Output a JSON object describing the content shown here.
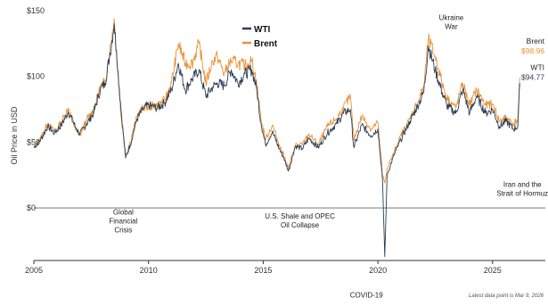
{
  "chart_data": {
    "type": "line",
    "title": "",
    "ylabel": "Oil Price in USD",
    "xlabel": "",
    "xlim": [
      2005,
      2027.3
    ],
    "ylim": [
      -40,
      150
    ],
    "y_ticks": [
      {
        "v": 0,
        "label": "$0"
      },
      {
        "v": 50,
        "label": "$50"
      },
      {
        "v": 100,
        "label": "$100"
      },
      {
        "v": 150,
        "label": "$150"
      }
    ],
    "x_ticks": [
      {
        "v": 2005,
        "label": "2005"
      },
      {
        "v": 2010,
        "label": "2010"
      },
      {
        "v": 2015,
        "label": "2015"
      },
      {
        "v": 2020,
        "label": "2020"
      },
      {
        "v": 2025,
        "label": "2025"
      }
    ],
    "grid": "zero-line only",
    "legend": {
      "position": "top-center",
      "items": [
        {
          "name": "WTI",
          "color": "#2c3e55"
        },
        {
          "name": "Brent",
          "color": "#e8933a"
        }
      ]
    },
    "series": [
      {
        "name": "WTI",
        "color": "#2c3e55",
        "points": [
          [
            2005.0,
            46
          ],
          [
            2005.3,
            52
          ],
          [
            2005.6,
            62
          ],
          [
            2005.9,
            57
          ],
          [
            2006.2,
            63
          ],
          [
            2006.5,
            73
          ],
          [
            2006.8,
            62
          ],
          [
            2007.0,
            56
          ],
          [
            2007.3,
            64
          ],
          [
            2007.6,
            72
          ],
          [
            2007.9,
            90
          ],
          [
            2008.1,
            95
          ],
          [
            2008.3,
            115
          ],
          [
            2008.5,
            140
          ],
          [
            2008.6,
            120
          ],
          [
            2008.8,
            75
          ],
          [
            2009.0,
            38
          ],
          [
            2009.2,
            48
          ],
          [
            2009.5,
            68
          ],
          [
            2009.8,
            76
          ],
          [
            2010.0,
            78
          ],
          [
            2010.4,
            76
          ],
          [
            2010.7,
            80
          ],
          [
            2011.0,
            90
          ],
          [
            2011.3,
            110
          ],
          [
            2011.6,
            90
          ],
          [
            2011.9,
            98
          ],
          [
            2012.2,
            105
          ],
          [
            2012.5,
            85
          ],
          [
            2012.8,
            92
          ],
          [
            2013.0,
            95
          ],
          [
            2013.3,
            93
          ],
          [
            2013.6,
            105
          ],
          [
            2013.9,
            95
          ],
          [
            2014.2,
            102
          ],
          [
            2014.5,
            105
          ],
          [
            2014.7,
            92
          ],
          [
            2014.9,
            65
          ],
          [
            2015.1,
            48
          ],
          [
            2015.4,
            58
          ],
          [
            2015.7,
            45
          ],
          [
            2015.9,
            38
          ],
          [
            2016.1,
            28
          ],
          [
            2016.4,
            47
          ],
          [
            2016.7,
            45
          ],
          [
            2017.0,
            53
          ],
          [
            2017.4,
            46
          ],
          [
            2017.8,
            57
          ],
          [
            2018.2,
            64
          ],
          [
            2018.5,
            72
          ],
          [
            2018.8,
            75
          ],
          [
            2018.95,
            46
          ],
          [
            2019.3,
            63
          ],
          [
            2019.7,
            55
          ],
          [
            2020.0,
            60
          ],
          [
            2020.2,
            22
          ],
          [
            2020.3,
            -37
          ],
          [
            2020.4,
            25
          ],
          [
            2020.7,
            40
          ],
          [
            2021.0,
            52
          ],
          [
            2021.4,
            66
          ],
          [
            2021.8,
            80
          ],
          [
            2022.0,
            88
          ],
          [
            2022.2,
            123
          ],
          [
            2022.5,
            105
          ],
          [
            2022.8,
            88
          ],
          [
            2023.0,
            78
          ],
          [
            2023.4,
            72
          ],
          [
            2023.7,
            90
          ],
          [
            2024.0,
            72
          ],
          [
            2024.3,
            85
          ],
          [
            2024.7,
            72
          ],
          [
            2025.0,
            75
          ],
          [
            2025.3,
            62
          ],
          [
            2025.6,
            66
          ],
          [
            2025.9,
            60
          ],
          [
            2026.1,
            62
          ],
          [
            2026.19,
            94.77
          ]
        ]
      },
      {
        "name": "Brent",
        "color": "#e8933a",
        "points": [
          [
            2005.0,
            45
          ],
          [
            2005.3,
            53
          ],
          [
            2005.6,
            64
          ],
          [
            2005.9,
            58
          ],
          [
            2006.2,
            65
          ],
          [
            2006.5,
            76
          ],
          [
            2006.8,
            61
          ],
          [
            2007.0,
            55
          ],
          [
            2007.3,
            67
          ],
          [
            2007.6,
            74
          ],
          [
            2007.9,
            92
          ],
          [
            2008.1,
            96
          ],
          [
            2008.3,
            118
          ],
          [
            2008.5,
            144
          ],
          [
            2008.6,
            118
          ],
          [
            2008.8,
            70
          ],
          [
            2009.0,
            40
          ],
          [
            2009.2,
            50
          ],
          [
            2009.5,
            70
          ],
          [
            2009.8,
            77
          ],
          [
            2010.0,
            77
          ],
          [
            2010.4,
            78
          ],
          [
            2010.7,
            82
          ],
          [
            2011.0,
            95
          ],
          [
            2011.3,
            125
          ],
          [
            2011.6,
            110
          ],
          [
            2011.9,
            110
          ],
          [
            2012.2,
            125
          ],
          [
            2012.5,
            95
          ],
          [
            2012.8,
            112
          ],
          [
            2013.0,
            115
          ],
          [
            2013.3,
            102
          ],
          [
            2013.6,
            112
          ],
          [
            2013.9,
            110
          ],
          [
            2014.2,
            108
          ],
          [
            2014.5,
            112
          ],
          [
            2014.7,
            97
          ],
          [
            2014.9,
            68
          ],
          [
            2015.1,
            52
          ],
          [
            2015.4,
            63
          ],
          [
            2015.7,
            48
          ],
          [
            2015.9,
            40
          ],
          [
            2016.1,
            30
          ],
          [
            2016.4,
            48
          ],
          [
            2016.7,
            48
          ],
          [
            2017.0,
            56
          ],
          [
            2017.4,
            48
          ],
          [
            2017.8,
            62
          ],
          [
            2018.2,
            68
          ],
          [
            2018.5,
            76
          ],
          [
            2018.8,
            85
          ],
          [
            2018.95,
            52
          ],
          [
            2019.3,
            70
          ],
          [
            2019.7,
            60
          ],
          [
            2020.0,
            65
          ],
          [
            2020.2,
            25
          ],
          [
            2020.3,
            19
          ],
          [
            2020.4,
            30
          ],
          [
            2020.7,
            42
          ],
          [
            2021.0,
            55
          ],
          [
            2021.4,
            68
          ],
          [
            2021.8,
            83
          ],
          [
            2022.0,
            92
          ],
          [
            2022.2,
            128
          ],
          [
            2022.5,
            115
          ],
          [
            2022.8,
            95
          ],
          [
            2023.0,
            84
          ],
          [
            2023.4,
            76
          ],
          [
            2023.7,
            95
          ],
          [
            2024.0,
            78
          ],
          [
            2024.3,
            90
          ],
          [
            2024.7,
            78
          ],
          [
            2025.0,
            79
          ],
          [
            2025.3,
            66
          ],
          [
            2025.6,
            69
          ],
          [
            2025.9,
            64
          ],
          [
            2026.1,
            67
          ],
          [
            2026.19,
            98.96
          ]
        ]
      }
    ],
    "annotations": [
      {
        "lines": [
          "Global",
          "Financial",
          "Crisis"
        ],
        "x": 2008.9,
        "y": -5
      },
      {
        "lines": [
          "U.S. Shale and OPEC",
          "Oil Collapse"
        ],
        "x": 2016.6,
        "y": -8
      },
      {
        "lines": [
          "COVID-19"
        ],
        "x": 2019.5,
        "y": -68
      },
      {
        "lines": [
          "Ukraine",
          "War"
        ],
        "x": 2023.2,
        "y": 143
      },
      {
        "lines": [
          "Iran and the",
          "Strait of Hormuz"
        ],
        "x": 2026.3,
        "y": 16
      }
    ],
    "end_labels": [
      {
        "series": "Brent",
        "lines": [
          "Brent",
          "$98.96"
        ],
        "y": 125
      },
      {
        "series": "WTI",
        "lines": [
          "WTI",
          "$94.77"
        ],
        "y": 105
      }
    ],
    "footnote": "Latest data point is Mar 9, 2026"
  }
}
